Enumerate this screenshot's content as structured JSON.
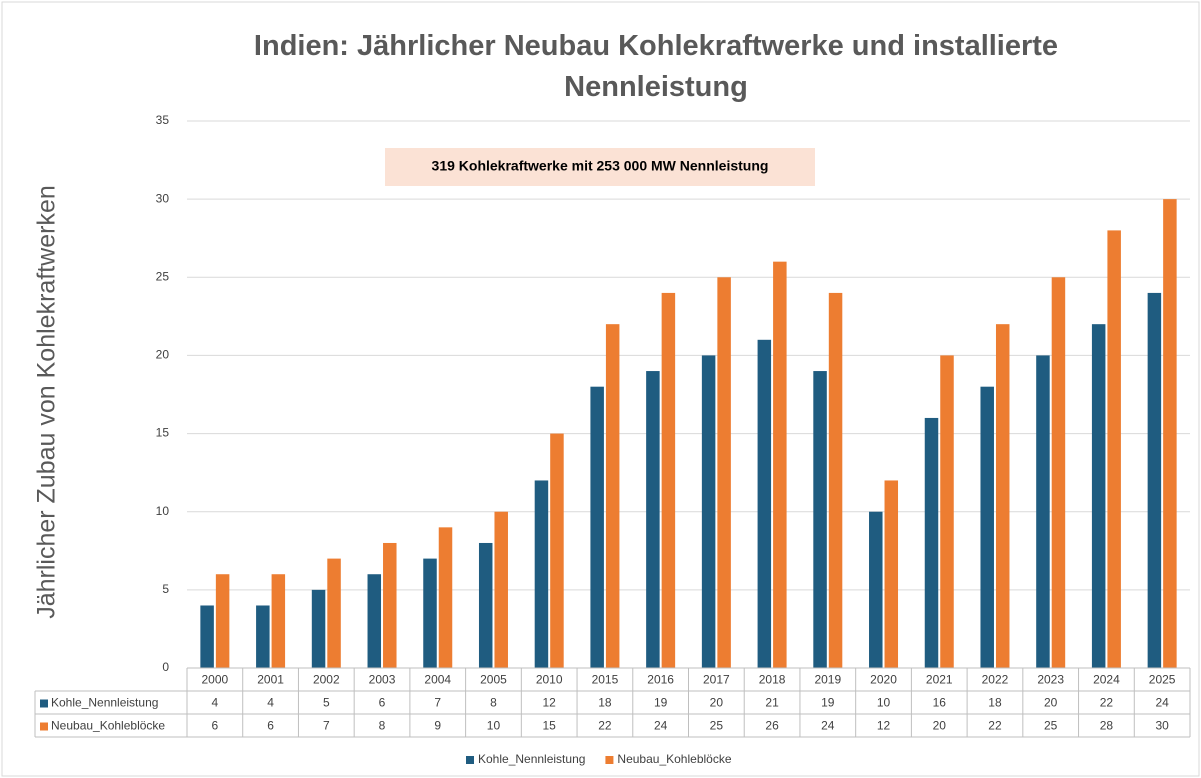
{
  "chart_data": {
    "type": "bar",
    "title": "Indien: Jährlicher Neubau Kohlekraftwerke und installierte Nennleistung",
    "annotation": "319 Kohlekraftwerke mit 253 000 MW Nennleistung",
    "ylabel": "Jährlicher Zubau von Kohlekraftwerken",
    "categories": [
      "2000",
      "2001",
      "2002",
      "2003",
      "2004",
      "2005",
      "2010",
      "2015",
      "2016",
      "2017",
      "2018",
      "2019",
      "2020",
      "2021",
      "2022",
      "2023",
      "2024",
      "2025"
    ],
    "series": [
      {
        "name": "Kohle_Nennleistung",
        "color": "#1f5c80",
        "values": [
          4,
          4,
          5,
          6,
          7,
          8,
          12,
          18,
          19,
          20,
          21,
          19,
          10,
          16,
          18,
          20,
          22,
          24
        ]
      },
      {
        "name": "Neubau_Kohleblöcke",
        "color": "#ed7d31",
        "values": [
          6,
          6,
          7,
          8,
          9,
          10,
          15,
          22,
          24,
          25,
          26,
          24,
          12,
          20,
          22,
          25,
          28,
          30
        ]
      }
    ],
    "ylim": [
      0,
      35
    ],
    "yticks": [
      0,
      5,
      10,
      15,
      20,
      25,
      30,
      35
    ],
    "grid": true,
    "data_table": true,
    "legend": "bottom"
  }
}
